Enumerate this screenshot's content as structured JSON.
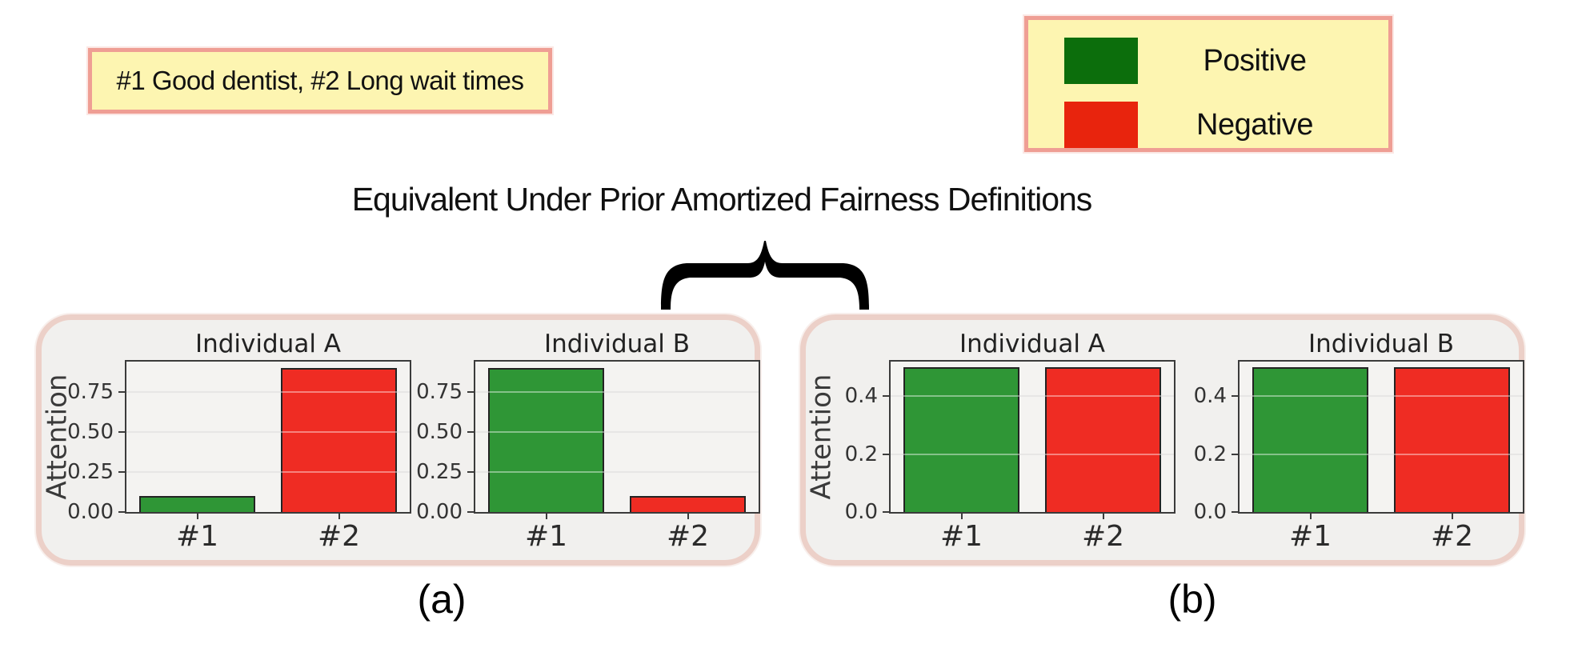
{
  "prompt_box": {
    "text": "#1 Good dentist, #2 Long wait times"
  },
  "legend": {
    "items": [
      {
        "label": "Positive",
        "color": "#0c6e0c"
      },
      {
        "label": "Negative",
        "color": "#e8240d"
      }
    ]
  },
  "annotation": {
    "text": "Equivalent Under Prior Amortized Fairness Definitions"
  },
  "captions": {
    "a": "(a)",
    "b": "(b)"
  },
  "colors": {
    "positive_bar": "#2f9636",
    "negative_bar": "#ef2c23",
    "bar_edge": "#232323",
    "note_bg": "#fdf5b1",
    "note_border": "#ef9e94",
    "panel_bg": "#f1f0ee",
    "panel_border": "#ecd0c8",
    "plot_bg": "#f4f3f1",
    "brace": "#000000"
  },
  "chart_data": [
    {
      "panel": "a",
      "type": "bar",
      "title": "Individual A",
      "ylabel": "Attention",
      "categories": [
        "#1",
        "#2"
      ],
      "values": [
        0.1,
        0.9
      ],
      "bar_colors": [
        "#2f9636",
        "#ef2c23"
      ],
      "yticks": [
        0.0,
        0.25,
        0.5,
        0.75
      ],
      "ytick_labels": [
        "0.00",
        "0.25",
        "0.50",
        "0.75"
      ],
      "ylim": [
        0,
        0.94
      ],
      "grid": true,
      "legend_position": "none"
    },
    {
      "panel": "a",
      "type": "bar",
      "title": "Individual B",
      "ylabel": null,
      "categories": [
        "#1",
        "#2"
      ],
      "values": [
        0.9,
        0.1
      ],
      "bar_colors": [
        "#2f9636",
        "#ef2c23"
      ],
      "yticks": [
        0.0,
        0.25,
        0.5,
        0.75
      ],
      "ytick_labels": [
        "0.00",
        "0.25",
        "0.50",
        "0.75"
      ],
      "ylim": [
        0,
        0.94
      ],
      "grid": true,
      "legend_position": "none"
    },
    {
      "panel": "b",
      "type": "bar",
      "title": "Individual A",
      "ylabel": "Attention",
      "categories": [
        "#1",
        "#2"
      ],
      "values": [
        0.5,
        0.5
      ],
      "bar_colors": [
        "#2f9636",
        "#ef2c23"
      ],
      "yticks": [
        0.0,
        0.2,
        0.4
      ],
      "ytick_labels": [
        "0.0",
        "0.2",
        "0.4"
      ],
      "ylim": [
        0,
        0.52
      ],
      "grid": true,
      "legend_position": "none"
    },
    {
      "panel": "b",
      "type": "bar",
      "title": "Individual B",
      "ylabel": null,
      "categories": [
        "#1",
        "#2"
      ],
      "values": [
        0.5,
        0.5
      ],
      "bar_colors": [
        "#2f9636",
        "#ef2c23"
      ],
      "yticks": [
        0.0,
        0.2,
        0.4
      ],
      "ytick_labels": [
        "0.0",
        "0.2",
        "0.4"
      ],
      "ylim": [
        0,
        0.52
      ],
      "grid": true,
      "legend_position": "none"
    }
  ]
}
